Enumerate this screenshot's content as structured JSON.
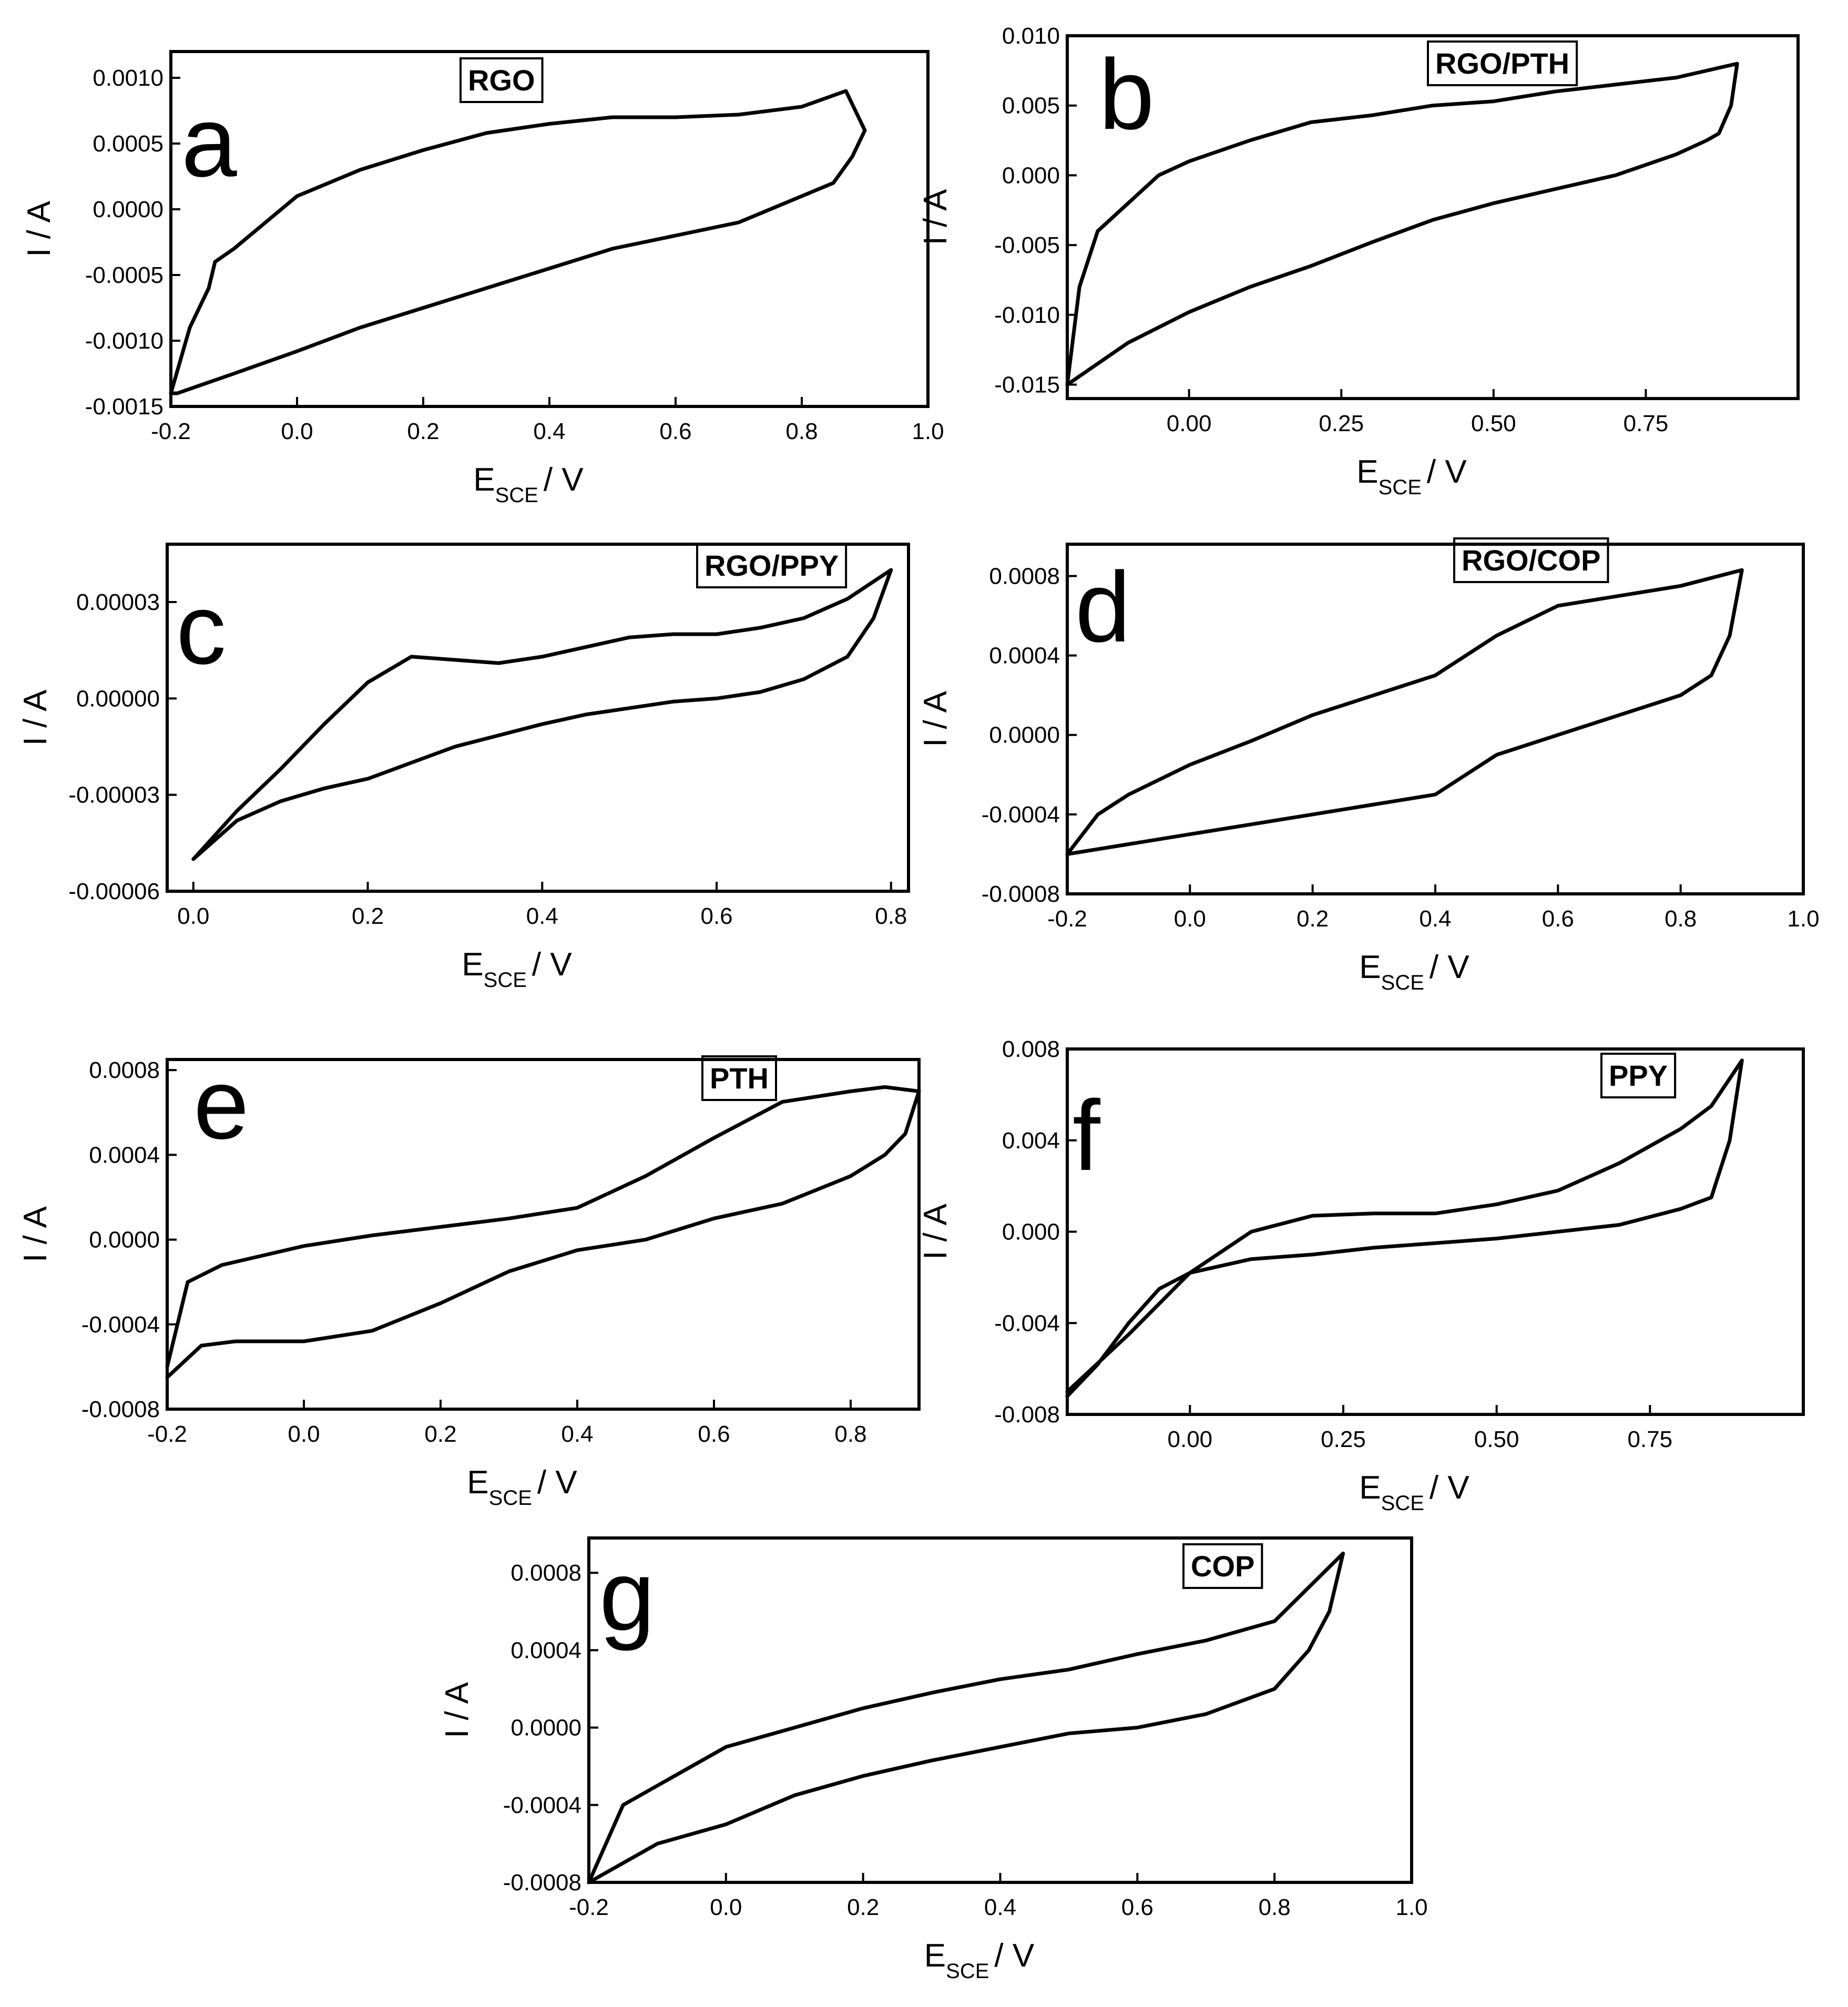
{
  "chart_data": [
    {
      "id": "a",
      "type": "line",
      "panel_letter": "a",
      "legend": "RGO",
      "xlabel": {
        "main": "E",
        "sub": "SCE",
        "unit": "/ V"
      },
      "ylabel": "I / A",
      "xlim": [
        -0.2,
        1.0
      ],
      "ylim": [
        -0.0015,
        0.0012
      ],
      "x_ticks": [
        -0.2,
        0.0,
        0.2,
        0.4,
        0.6,
        0.8,
        1.0
      ],
      "x_tick_labels": [
        "-0.2",
        "0.0",
        "0.2",
        "0.4",
        "0.6",
        "0.8",
        "1.0"
      ],
      "y_ticks": [
        -0.0015,
        -0.001,
        -0.0005,
        0.0,
        0.0005,
        0.001
      ],
      "y_tick_labels": [
        "-0.0015",
        "-0.0010",
        "-0.0005",
        "0.0000",
        "0.0005",
        "0.0010"
      ],
      "series": [
        {
          "name": "RGO",
          "x": [
            -0.2,
            -0.17,
            -0.14,
            -0.13,
            -0.1,
            0.0,
            0.1,
            0.2,
            0.3,
            0.4,
            0.5,
            0.6,
            0.7,
            0.8,
            0.87,
            0.9,
            0.88,
            0.85,
            0.8,
            0.7,
            0.6,
            0.5,
            0.4,
            0.3,
            0.2,
            0.1,
            0.0,
            -0.1,
            -0.19,
            -0.2
          ],
          "y": [
            -0.0014,
            -0.0009,
            -0.0006,
            -0.0004,
            -0.0003,
            0.0001,
            0.0003,
            0.00045,
            0.00058,
            0.00065,
            0.0007,
            0.0007,
            0.00072,
            0.00078,
            0.0009,
            0.0006,
            0.0004,
            0.0002,
            0.0001,
            -0.0001,
            -0.0002,
            -0.0003,
            -0.00045,
            -0.0006,
            -0.00075,
            -0.0009,
            -0.00108,
            -0.00125,
            -0.0014,
            -0.0014
          ]
        }
      ]
    },
    {
      "id": "b",
      "type": "line",
      "panel_letter": "b",
      "legend": "RGO/PTH",
      "xlabel": {
        "main": "E",
        "sub": "SCE",
        "unit": "/ V"
      },
      "ylabel": "I / A",
      "xlim": [
        -0.2,
        1.0
      ],
      "ylim": [
        -0.016,
        0.01
      ],
      "x_ticks": [
        0.0,
        0.25,
        0.5,
        0.75
      ],
      "x_tick_labels": [
        "0.00",
        "0.25",
        "0.50",
        "0.75"
      ],
      "y_ticks": [
        -0.015,
        -0.01,
        -0.005,
        0.0,
        0.005,
        0.01
      ],
      "y_tick_labels": [
        "-0.015",
        "-0.010",
        "-0.005",
        "0.000",
        "0.005",
        "0.010"
      ],
      "series": [
        {
          "name": "RGO/PTH",
          "x": [
            -0.2,
            -0.18,
            -0.15,
            -0.1,
            -0.05,
            0.0,
            0.1,
            0.2,
            0.3,
            0.4,
            0.5,
            0.6,
            0.7,
            0.8,
            0.88,
            0.9,
            0.89,
            0.87,
            0.85,
            0.8,
            0.7,
            0.6,
            0.5,
            0.4,
            0.3,
            0.2,
            0.1,
            0.0,
            -0.1,
            -0.2
          ],
          "y": [
            -0.015,
            -0.008,
            -0.004,
            -0.002,
            0.0,
            0.001,
            0.0025,
            0.0038,
            0.0043,
            0.005,
            0.0053,
            0.006,
            0.0065,
            0.007,
            0.0078,
            0.008,
            0.005,
            0.003,
            0.0025,
            0.0015,
            0.0,
            -0.001,
            -0.002,
            -0.0032,
            -0.0048,
            -0.0065,
            -0.008,
            -0.0098,
            -0.012,
            -0.015
          ]
        }
      ]
    },
    {
      "id": "c",
      "type": "line",
      "panel_letter": "c",
      "legend": "RGO/PPY",
      "xlabel": {
        "main": "E",
        "sub": "SCE",
        "unit": "/ V"
      },
      "ylabel": "I / A",
      "xlim": [
        -0.03,
        0.82
      ],
      "ylim": [
        -6e-05,
        4.8e-05
      ],
      "x_ticks": [
        0.0,
        0.2,
        0.4,
        0.6,
        0.8
      ],
      "x_tick_labels": [
        "0.0",
        "0.2",
        "0.4",
        "0.6",
        "0.8"
      ],
      "y_ticks": [
        -6e-05,
        -3e-05,
        0.0,
        3e-05
      ],
      "y_tick_labels": [
        "-0.00006",
        "-0.00003",
        "0.00000",
        "0.00003"
      ],
      "series": [
        {
          "name": "RGO/PPY",
          "x": [
            0.0,
            0.05,
            0.1,
            0.15,
            0.2,
            0.25,
            0.3,
            0.35,
            0.4,
            0.45,
            0.5,
            0.55,
            0.6,
            0.65,
            0.7,
            0.75,
            0.8,
            0.78,
            0.75,
            0.7,
            0.65,
            0.6,
            0.55,
            0.5,
            0.45,
            0.4,
            0.3,
            0.2,
            0.15,
            0.1,
            0.05,
            0.0
          ],
          "y": [
            -5e-05,
            -3.5e-05,
            -2.2e-05,
            -8e-06,
            5e-06,
            1.3e-05,
            1.2e-05,
            1.1e-05,
            1.3e-05,
            1.6e-05,
            1.9e-05,
            2e-05,
            2e-05,
            2.2e-05,
            2.5e-05,
            3.1e-05,
            4e-05,
            2.5e-05,
            1.3e-05,
            6e-06,
            2e-06,
            0.0,
            -1e-06,
            -3e-06,
            -5e-06,
            -8e-06,
            -1.5e-05,
            -2.5e-05,
            -2.8e-05,
            -3.2e-05,
            -3.8e-05,
            -5e-05
          ]
        }
      ]
    },
    {
      "id": "d",
      "type": "line",
      "panel_letter": "d",
      "legend": "RGO/COP",
      "xlabel": {
        "main": "E",
        "sub": "SCE",
        "unit": "/ V"
      },
      "ylabel": "I / A",
      "xlim": [
        -0.2,
        1.0
      ],
      "ylim": [
        -0.0008,
        0.00096
      ],
      "x_ticks": [
        -0.2,
        0.0,
        0.2,
        0.4,
        0.6,
        0.8,
        1.0
      ],
      "x_tick_labels": [
        "-0.2",
        "0.0",
        "0.2",
        "0.4",
        "0.6",
        "0.8",
        "1.0"
      ],
      "y_ticks": [
        -0.0008,
        -0.0004,
        0.0,
        0.0004,
        0.0008
      ],
      "y_tick_labels": [
        "-0.0008",
        "-0.0004",
        "0.0000",
        "0.0004",
        "0.0008"
      ],
      "series": [
        {
          "name": "RGO/COP",
          "x": [
            -0.2,
            -0.15,
            -0.1,
            0.0,
            0.1,
            0.2,
            0.3,
            0.4,
            0.5,
            0.6,
            0.7,
            0.8,
            0.9,
            0.88,
            0.85,
            0.8,
            0.7,
            0.6,
            0.5,
            0.45,
            0.4,
            0.3,
            0.2,
            0.1,
            0.0,
            -0.1,
            -0.2
          ],
          "y": [
            -0.0006,
            -0.0004,
            -0.0003,
            -0.00015,
            -3e-05,
            0.0001,
            0.0002,
            0.0003,
            0.0005,
            0.00065,
            0.0007,
            0.00075,
            0.00083,
            0.0005,
            0.0003,
            0.0002,
            0.0001,
            0.0,
            -0.0001,
            -0.0002,
            -0.0003,
            -0.00035,
            -0.0004,
            -0.00045,
            -0.0005,
            -0.00055,
            -0.0006
          ]
        }
      ]
    },
    {
      "id": "e",
      "type": "line",
      "panel_letter": "e",
      "legend": "PTH",
      "xlabel": {
        "main": "E",
        "sub": "SCE",
        "unit": "/ V"
      },
      "ylabel": "I / A",
      "xlim": [
        -0.2,
        0.9
      ],
      "ylim": [
        -0.0008,
        0.00085
      ],
      "x_ticks": [
        -0.2,
        0.0,
        0.2,
        0.4,
        0.6,
        0.8
      ],
      "x_tick_labels": [
        "-0.2",
        "0.0",
        "0.2",
        "0.4",
        "0.6",
        "0.8"
      ],
      "y_ticks": [
        -0.0008,
        -0.0004,
        0.0,
        0.0004,
        0.0008
      ],
      "y_tick_labels": [
        "-0.0008",
        "-0.0004",
        "0.0000",
        "0.0004",
        "0.0008"
      ],
      "series": [
        {
          "name": "PTH",
          "x": [
            -0.2,
            -0.17,
            -0.12,
            0.0,
            0.1,
            0.2,
            0.3,
            0.4,
            0.5,
            0.6,
            0.7,
            0.8,
            0.85,
            0.9,
            0.88,
            0.85,
            0.8,
            0.7,
            0.6,
            0.5,
            0.4,
            0.3,
            0.2,
            0.1,
            0.0,
            -0.1,
            -0.15,
            -0.2
          ],
          "y": [
            -0.0006,
            -0.0002,
            -0.00012,
            -3e-05,
            2e-05,
            6e-05,
            0.0001,
            0.00015,
            0.0003,
            0.00048,
            0.00065,
            0.0007,
            0.00072,
            0.0007,
            0.0005,
            0.0004,
            0.0003,
            0.00017,
            0.0001,
            0.0,
            -5e-05,
            -0.00015,
            -0.0003,
            -0.00043,
            -0.00048,
            -0.00048,
            -0.0005,
            -0.00065
          ]
        }
      ]
    },
    {
      "id": "f",
      "type": "line",
      "panel_letter": "f",
      "legend": "PPY",
      "xlabel": {
        "main": "E",
        "sub": "SCE",
        "unit": "/ V"
      },
      "ylabel": "I / A",
      "xlim": [
        -0.2,
        1.0
      ],
      "ylim": [
        -0.008,
        0.008
      ],
      "x_ticks": [
        0.0,
        0.25,
        0.5,
        0.75
      ],
      "x_tick_labels": [
        "0.00",
        "0.25",
        "0.50",
        "0.75"
      ],
      "y_ticks": [
        -0.008,
        -0.004,
        0.0,
        0.004,
        0.008
      ],
      "y_tick_labels": [
        "-0.008",
        "-0.004",
        "0.000",
        "0.004",
        "0.008"
      ],
      "series": [
        {
          "name": "PPY",
          "x": [
            -0.2,
            -0.1,
            0.0,
            0.1,
            0.2,
            0.3,
            0.4,
            0.5,
            0.6,
            0.7,
            0.8,
            0.85,
            0.9,
            0.88,
            0.85,
            0.8,
            0.7,
            0.6,
            0.5,
            0.4,
            0.3,
            0.2,
            0.1,
            0.0,
            -0.05,
            -0.1,
            -0.15,
            -0.2
          ],
          "y": [
            -0.007,
            -0.0045,
            -0.0018,
            0.0,
            0.0007,
            0.0008,
            0.0008,
            0.0012,
            0.0018,
            0.003,
            0.0045,
            0.0055,
            0.0075,
            0.004,
            0.0015,
            0.001,
            0.0003,
            0.0,
            -0.0003,
            -0.0005,
            -0.0007,
            -0.001,
            -0.0012,
            -0.0018,
            -0.0025,
            -0.004,
            -0.0058,
            -0.0072
          ]
        }
      ]
    },
    {
      "id": "g",
      "type": "line",
      "panel_letter": "g",
      "legend": "COP",
      "xlabel": {
        "main": "E",
        "sub": "SCE",
        "unit": "/ V"
      },
      "ylabel": "I / A",
      "xlim": [
        -0.2,
        1.0
      ],
      "ylim": [
        -0.0008,
        0.00098
      ],
      "x_ticks": [
        -0.2,
        0.0,
        0.2,
        0.4,
        0.6,
        0.8,
        1.0
      ],
      "x_tick_labels": [
        "-0.2",
        "0.0",
        "0.2",
        "0.4",
        "0.6",
        "0.8",
        "1.0"
      ],
      "y_ticks": [
        -0.0008,
        -0.0004,
        0.0,
        0.0004,
        0.0008
      ],
      "y_tick_labels": [
        "-0.0008",
        "-0.0004",
        "0.0000",
        "0.0004",
        "0.0008"
      ],
      "series": [
        {
          "name": "COP",
          "x": [
            -0.2,
            -0.15,
            -0.1,
            0.0,
            0.1,
            0.2,
            0.3,
            0.4,
            0.5,
            0.6,
            0.7,
            0.8,
            0.9,
            0.88,
            0.85,
            0.8,
            0.7,
            0.6,
            0.5,
            0.4,
            0.3,
            0.2,
            0.1,
            0.0,
            -0.1,
            -0.2
          ],
          "y": [
            -0.0008,
            -0.0004,
            -0.0003,
            -0.0001,
            0.0,
            0.0001,
            0.00018,
            0.00025,
            0.0003,
            0.00038,
            0.00045,
            0.00055,
            0.0009,
            0.0006,
            0.0004,
            0.0002,
            7e-05,
            0.0,
            -3e-05,
            -0.0001,
            -0.00017,
            -0.00025,
            -0.00035,
            -0.0005,
            -0.0006,
            -0.0008
          ]
        }
      ]
    }
  ]
}
